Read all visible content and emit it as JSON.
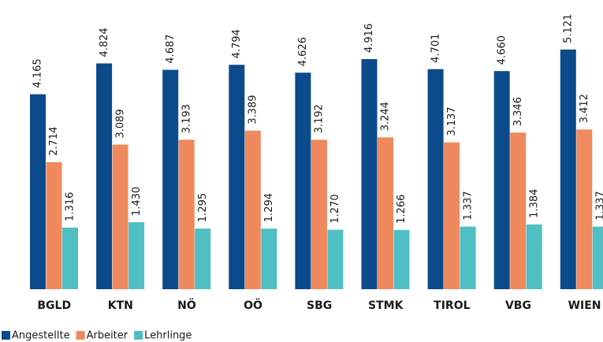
{
  "chart_data": {
    "type": "bar",
    "categories": [
      "BGLD",
      "KTN",
      "NÖ",
      "OÖ",
      "SBG",
      "STMK",
      "TIROL",
      "VBG",
      "WIEN"
    ],
    "series": [
      {
        "name": "Angestellte",
        "color": "#0b4a8b",
        "values": [
          4165,
          4824,
          4687,
          4794,
          4626,
          4916,
          4701,
          4660,
          5121
        ],
        "value_labels": [
          "4.165",
          "4.824",
          "4.687",
          "4.794",
          "4.626",
          "4.916",
          "4.701",
          "4.660",
          "5.121"
        ]
      },
      {
        "name": "Arbeiter",
        "color": "#f0895e",
        "values": [
          2714,
          3089,
          3193,
          3389,
          3192,
          3244,
          3137,
          3346,
          3412
        ],
        "value_labels": [
          "2.714",
          "3.089",
          "3.193",
          "3.389",
          "3.192",
          "3.244",
          "3.137",
          "3.346",
          "3.412"
        ]
      },
      {
        "name": "Lehrlinge",
        "color": "#4fbfc4",
        "values": [
          1316,
          1430,
          1295,
          1294,
          1270,
          1266,
          1337,
          1384,
          1337
        ],
        "value_labels": [
          "1.316",
          "1.430",
          "1.295",
          "1.294",
          "1.270",
          "1.266",
          "1.337",
          "1.384",
          "1.337"
        ]
      }
    ]
  }
}
